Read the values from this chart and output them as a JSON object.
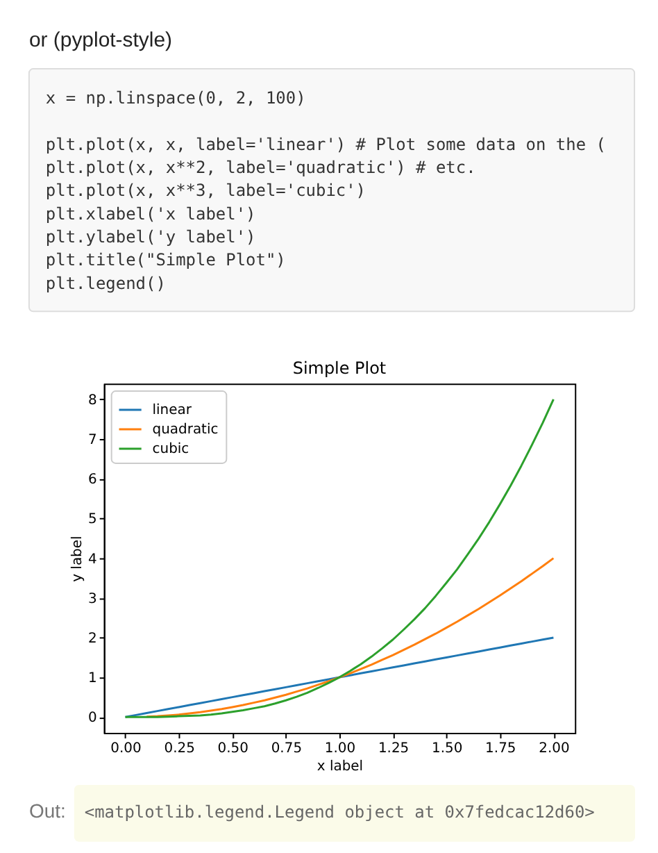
{
  "chart_data": {
    "type": "line",
    "title": "Simple Plot",
    "xlabel": "x label",
    "ylabel": "y label",
    "x": [
      0,
      0.05,
      0.1,
      0.15,
      0.2,
      0.25,
      0.3,
      0.35,
      0.4,
      0.45,
      0.5,
      0.55,
      0.6,
      0.65,
      0.7,
      0.75,
      0.8,
      0.85,
      0.9,
      0.95,
      1,
      1.05,
      1.1,
      1.15,
      1.2,
      1.25,
      1.3,
      1.35,
      1.4,
      1.45,
      1.5,
      1.55,
      1.6,
      1.65,
      1.7,
      1.75,
      1.8,
      1.85,
      1.9,
      1.95,
      2
    ],
    "series": [
      {
        "name": "linear",
        "color": "#1f77b4",
        "values": [
          0,
          0.05,
          0.1,
          0.15,
          0.2,
          0.25,
          0.3,
          0.35,
          0.4,
          0.45,
          0.5,
          0.55,
          0.6,
          0.65,
          0.7,
          0.75,
          0.8,
          0.85,
          0.9,
          0.95,
          1,
          1.05,
          1.1,
          1.15,
          1.2,
          1.25,
          1.3,
          1.35,
          1.4,
          1.45,
          1.5,
          1.55,
          1.6,
          1.65,
          1.7,
          1.75,
          1.8,
          1.85,
          1.9,
          1.95,
          2
        ]
      },
      {
        "name": "quadratic",
        "color": "#ff7f0e",
        "values": [
          null,
          null,
          0.01,
          0.02,
          0.04,
          0.06,
          0.09,
          0.12,
          0.16,
          0.2,
          0.25,
          0.3,
          0.36,
          0.42,
          0.49,
          0.56,
          0.64,
          0.72,
          0.81,
          0.9,
          1,
          1.1,
          1.21,
          1.32,
          1.44,
          1.56,
          1.69,
          1.82,
          1.96,
          2.1,
          2.25,
          2.4,
          2.56,
          2.72,
          2.89,
          3.06,
          3.24,
          3.42,
          3.61,
          3.8,
          4
        ]
      },
      {
        "name": "cubic",
        "color": "#2ca02c",
        "values": [
          0,
          0,
          0,
          0,
          0.01,
          0.02,
          0.03,
          0.04,
          0.06,
          0.09,
          0.13,
          0.17,
          0.22,
          0.27,
          0.34,
          0.42,
          0.51,
          0.61,
          0.73,
          0.86,
          1,
          1.16,
          1.33,
          1.52,
          1.73,
          1.95,
          2.2,
          2.46,
          2.74,
          3.05,
          3.38,
          3.72,
          4.1,
          4.49,
          4.91,
          5.36,
          5.83,
          6.33,
          6.86,
          7.41,
          8
        ]
      }
    ],
    "xlim": [
      -0.1,
      2.1
    ],
    "ylim": [
      -0.4,
      8.4
    ],
    "xticks": [
      {
        "value": 0,
        "label": "0.00"
      },
      0.25,
      {
        "value": 0.5,
        "label": "0.50"
      },
      0.75,
      {
        "value": 1,
        "label": "1.00"
      },
      1.25,
      {
        "value": 1.5,
        "label": "1.50"
      },
      1.75,
      {
        "value": 2,
        "label": "2.00"
      }
    ],
    "yticks": [
      0,
      1,
      2,
      3,
      4,
      5,
      6,
      7,
      8
    ],
    "grid": false,
    "legend": "top left",
    "annotations": [
      "or (pyplot-style)",
      "x = np.linspace(0, 2, 100)",
      "plt.plot(x, x, label='linear')  # Plot some data on the (",
      "plt.plot(x, x**2, label='quadratic')  # etc.",
      "plt.plot(x, x**3, label='cubic')",
      "plt.xlabel('x label')",
      "plt.ylabel('y label')",
      "plt.title(\"Simple Plot\")",
      "plt.legend()",
      "Out:",
      "<matplotlib.legend.Legend object at 0x7fedcac12d60>"
    ]
  }
}
